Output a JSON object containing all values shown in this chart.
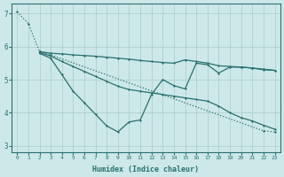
{
  "xlabel": "Humidex (Indice chaleur)",
  "bg_color": "#cce8e8",
  "grid_color": "#aacccc",
  "line_color": "#2a7070",
  "xlim": [
    -0.5,
    23.5
  ],
  "ylim": [
    2.8,
    7.3
  ],
  "yticks": [
    3,
    4,
    5,
    6,
    7
  ],
  "xticks": [
    0,
    1,
    2,
    3,
    4,
    5,
    6,
    7,
    8,
    9,
    10,
    11,
    12,
    13,
    14,
    15,
    16,
    17,
    18,
    19,
    20,
    21,
    22,
    23
  ],
  "series": [
    {
      "style": "dotted",
      "x": [
        0,
        1,
        2,
        3,
        22,
        23
      ],
      "y": [
        7.05,
        6.7,
        5.85,
        5.75,
        3.45,
        3.42
      ]
    },
    {
      "style": "solid",
      "x": [
        2,
        3,
        4,
        5,
        6,
        7,
        8,
        9,
        10,
        11,
        12,
        13,
        14,
        15,
        16,
        17,
        18,
        19,
        20,
        21,
        22,
        23
      ],
      "y": [
        5.85,
        5.8,
        5.78,
        5.75,
        5.73,
        5.71,
        5.68,
        5.65,
        5.62,
        5.58,
        5.55,
        5.52,
        5.5,
        5.6,
        5.55,
        5.5,
        5.42,
        5.4,
        5.38,
        5.35,
        5.3,
        5.28
      ]
    },
    {
      "style": "solid",
      "x": [
        2,
        3,
        4,
        5,
        6,
        7,
        8,
        9,
        10,
        11,
        12,
        13,
        14,
        15,
        16,
        17,
        18,
        19,
        20,
        21,
        22,
        23
      ],
      "y": [
        5.82,
        5.72,
        5.55,
        5.4,
        5.25,
        5.1,
        4.95,
        4.8,
        4.7,
        4.65,
        4.6,
        4.55,
        4.5,
        4.45,
        4.4,
        4.35,
        4.2,
        4.0,
        3.85,
        3.75,
        3.62,
        3.5
      ]
    },
    {
      "style": "solid",
      "x": [
        2,
        3,
        4,
        5,
        6,
        7,
        8,
        9,
        10,
        11,
        12,
        13,
        14,
        15,
        16,
        17,
        18,
        19,
        20,
        21,
        22,
        23
      ],
      "y": [
        5.8,
        5.65,
        5.15,
        4.65,
        4.3,
        3.95,
        3.6,
        3.42,
        3.72,
        3.78,
        4.55,
        5.0,
        4.82,
        4.72,
        5.5,
        5.45,
        5.2,
        5.38,
        5.38,
        5.35,
        5.32,
        5.28
      ]
    }
  ]
}
